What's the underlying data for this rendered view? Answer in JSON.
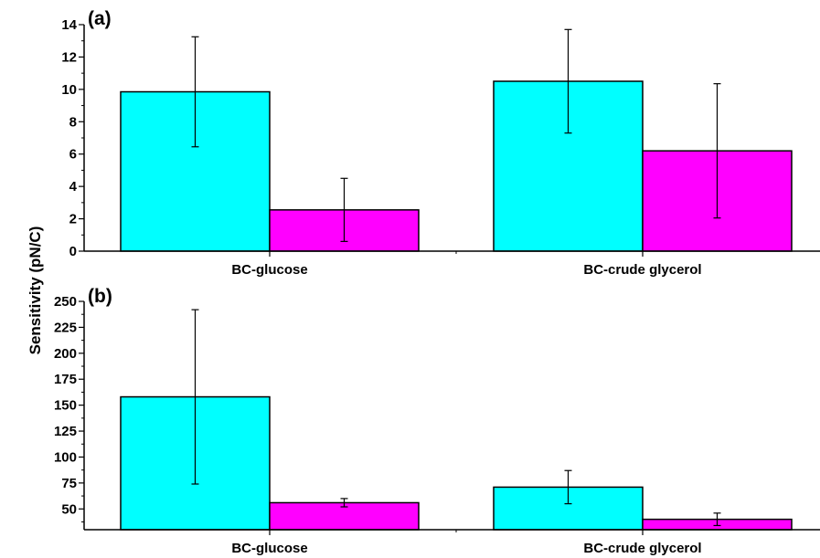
{
  "figure": {
    "ylabel": "Sensitivity (pN/C)"
  },
  "colors": {
    "series_a": "#00ffff",
    "series_b": "#ff00ff",
    "axis": "#000000"
  },
  "chart_data": [
    {
      "type": "bar",
      "panel_label": "(a)",
      "categories": [
        "BC-glucose",
        "BC-crude glycerol"
      ],
      "series": [
        {
          "values": [
            9.85,
            10.5
          ],
          "errors": [
            3.4,
            3.2
          ]
        },
        {
          "values": [
            2.55,
            6.2
          ],
          "errors": [
            1.95,
            4.15
          ]
        }
      ],
      "ylim": [
        0,
        14
      ],
      "yticks": [
        0,
        2,
        4,
        6,
        8,
        10,
        12,
        14
      ],
      "xlabel": "",
      "ylabel": "Sensitivity (pN/C)",
      "grid": false,
      "legend": "none"
    },
    {
      "type": "bar",
      "panel_label": "(b)",
      "categories": [
        "BC-glucose",
        "BC-crude glycerol"
      ],
      "series": [
        {
          "values": [
            158,
            71
          ],
          "errors": [
            84,
            16
          ]
        },
        {
          "values": [
            56,
            40
          ],
          "errors": [
            4,
            6
          ]
        }
      ],
      "ylim": [
        30,
        250
      ],
      "yticks": [
        50,
        75,
        100,
        125,
        150,
        175,
        200,
        225,
        250
      ],
      "xlabel": "",
      "ylabel": "Sensitivity (pN/C)",
      "grid": false,
      "legend": "none"
    }
  ]
}
